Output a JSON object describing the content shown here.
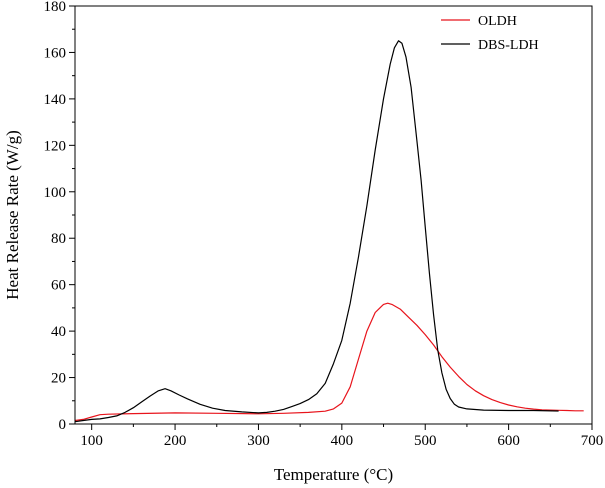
{
  "chart_data": {
    "type": "line",
    "title": "",
    "xlabel": "Temperature (°C)",
    "ylabel": "Heat Release Rate (W/g)",
    "xlim": [
      80,
      700
    ],
    "ylim": [
      0,
      180
    ],
    "xticks": [
      100,
      200,
      300,
      400,
      500,
      600,
      700
    ],
    "yticks": [
      0,
      20,
      40,
      60,
      80,
      100,
      120,
      140,
      160,
      180
    ],
    "grid": false,
    "legend_position": "top-right",
    "series": [
      {
        "name": "OLDH",
        "color": "#e8141c",
        "points": [
          [
            80,
            1.5
          ],
          [
            90,
            2
          ],
          [
            100,
            3
          ],
          [
            110,
            4
          ],
          [
            120,
            4.2
          ],
          [
            150,
            4.5
          ],
          [
            200,
            4.8
          ],
          [
            250,
            4.6
          ],
          [
            300,
            4.4
          ],
          [
            330,
            4.6
          ],
          [
            360,
            5
          ],
          [
            380,
            5.5
          ],
          [
            390,
            6.5
          ],
          [
            400,
            9
          ],
          [
            410,
            16
          ],
          [
            420,
            28
          ],
          [
            430,
            40
          ],
          [
            440,
            48
          ],
          [
            450,
            51.5
          ],
          [
            455,
            52
          ],
          [
            460,
            51.5
          ],
          [
            470,
            49.5
          ],
          [
            480,
            46
          ],
          [
            490,
            42.5
          ],
          [
            500,
            38.5
          ],
          [
            510,
            34
          ],
          [
            520,
            29
          ],
          [
            530,
            24.5
          ],
          [
            540,
            20.5
          ],
          [
            550,
            17
          ],
          [
            560,
            14.3
          ],
          [
            570,
            12.2
          ],
          [
            580,
            10.5
          ],
          [
            590,
            9.2
          ],
          [
            600,
            8.2
          ],
          [
            610,
            7.4
          ],
          [
            620,
            6.8
          ],
          [
            630,
            6.4
          ],
          [
            640,
            6.1
          ],
          [
            650,
            6
          ],
          [
            660,
            5.9
          ],
          [
            670,
            5.8
          ],
          [
            680,
            5.7
          ],
          [
            690,
            5.7
          ]
        ]
      },
      {
        "name": "DBS-LDH",
        "color": "#000000",
        "points": [
          [
            80,
            1
          ],
          [
            90,
            1.5
          ],
          [
            100,
            2
          ],
          [
            110,
            2.2
          ],
          [
            120,
            2.8
          ],
          [
            130,
            3.5
          ],
          [
            140,
            5
          ],
          [
            150,
            7
          ],
          [
            160,
            9.5
          ],
          [
            170,
            12
          ],
          [
            180,
            14.3
          ],
          [
            188,
            15.2
          ],
          [
            195,
            14.3
          ],
          [
            205,
            12.5
          ],
          [
            215,
            10.8
          ],
          [
            230,
            8.5
          ],
          [
            245,
            6.8
          ],
          [
            260,
            5.8
          ],
          [
            280,
            5.2
          ],
          [
            300,
            4.8
          ],
          [
            310,
            5
          ],
          [
            320,
            5.5
          ],
          [
            330,
            6.3
          ],
          [
            340,
            7.5
          ],
          [
            350,
            8.8
          ],
          [
            360,
            10.5
          ],
          [
            370,
            13
          ],
          [
            380,
            17.5
          ],
          [
            390,
            26
          ],
          [
            400,
            36
          ],
          [
            410,
            52
          ],
          [
            420,
            72
          ],
          [
            430,
            94
          ],
          [
            440,
            118
          ],
          [
            450,
            140
          ],
          [
            458,
            155
          ],
          [
            463,
            162
          ],
          [
            468,
            165
          ],
          [
            472,
            164
          ],
          [
            477,
            158
          ],
          [
            483,
            145
          ],
          [
            490,
            122
          ],
          [
            495,
            105
          ],
          [
            500,
            85
          ],
          [
            505,
            65
          ],
          [
            510,
            47
          ],
          [
            515,
            32
          ],
          [
            520,
            22
          ],
          [
            525,
            15
          ],
          [
            530,
            11
          ],
          [
            535,
            8.5
          ],
          [
            540,
            7.3
          ],
          [
            550,
            6.5
          ],
          [
            570,
            6
          ],
          [
            600,
            5.8
          ],
          [
            630,
            5.8
          ],
          [
            660,
            5.6
          ]
        ]
      }
    ]
  }
}
